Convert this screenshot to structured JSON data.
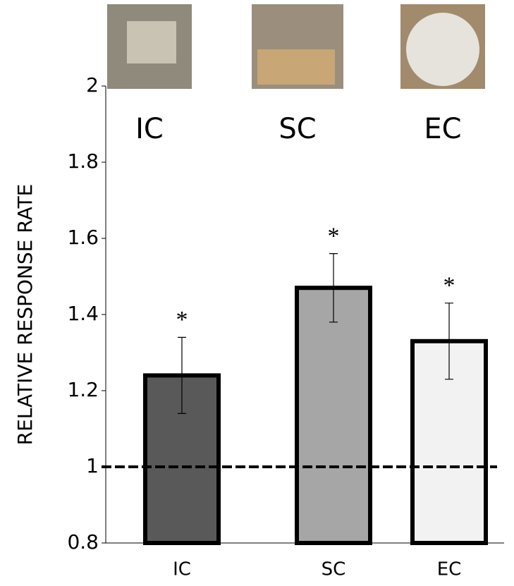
{
  "chart_data": {
    "type": "bar",
    "y_label": "RELATIVE RESPONSE RATE",
    "categories": [
      "IC",
      "SC",
      "EC"
    ],
    "values": [
      1.24,
      1.47,
      1.33
    ],
    "errors": [
      0.1,
      0.09,
      0.1
    ],
    "colors": [
      "#595959",
      "#a6a6a6",
      "#f2f2f2"
    ],
    "annotations": [
      "*",
      "*",
      "*"
    ],
    "image_labels": [
      "IC",
      "SC",
      "EC"
    ],
    "reference_line": 1,
    "ylim": [
      0.8,
      2
    ],
    "yticks": [
      0.8,
      1,
      1.2,
      1.4,
      1.6,
      1.8,
      2
    ]
  }
}
